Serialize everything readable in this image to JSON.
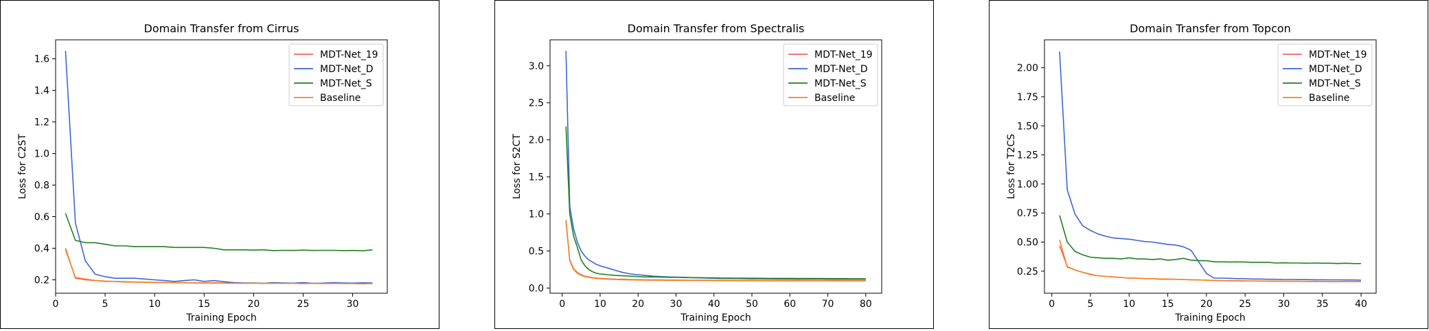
{
  "chart_data": [
    {
      "type": "line",
      "title": "Domain Transfer from Cirrus",
      "xlabel": "Training Epoch",
      "ylabel": "Loss for C2ST",
      "xlim": [
        0,
        33.5
      ],
      "ylim": [
        0.115,
        1.72
      ],
      "xticks": [
        0,
        5,
        10,
        15,
        20,
        25,
        30
      ],
      "yticks": [
        0.2,
        0.4,
        0.6,
        0.8,
        1.0,
        1.2,
        1.4,
        1.6
      ],
      "ytick_labels": [
        "0.2",
        "0.4",
        "0.6",
        "0.8",
        "1.0",
        "1.2",
        "1.4",
        "1.6"
      ],
      "legend": "top-right",
      "x": [
        1,
        2,
        3,
        4,
        5,
        6,
        7,
        8,
        9,
        10,
        11,
        12,
        13,
        14,
        15,
        16,
        17,
        18,
        19,
        20,
        21,
        22,
        23,
        24,
        25,
        26,
        27,
        28,
        29,
        30,
        31,
        32
      ],
      "series": [
        {
          "name": "MDT-Net_19",
          "color": "#f4655e",
          "values": [
            0.4,
            0.21,
            0.2,
            0.195,
            0.19,
            0.19,
            0.188,
            0.186,
            0.185,
            0.184,
            0.183,
            0.182,
            0.182,
            0.181,
            0.18,
            0.181,
            0.18,
            0.179,
            0.179,
            0.18,
            0.178,
            0.179,
            0.178,
            0.178,
            0.177,
            0.178,
            0.177,
            0.178,
            0.177,
            0.177,
            0.176,
            0.177
          ]
        },
        {
          "name": "MDT-Net_D",
          "color": "#3b64d8",
          "values": [
            1.65,
            0.56,
            0.32,
            0.235,
            0.22,
            0.21,
            0.21,
            0.21,
            0.205,
            0.2,
            0.195,
            0.19,
            0.195,
            0.2,
            0.19,
            0.195,
            0.188,
            0.182,
            0.18,
            0.18,
            0.178,
            0.182,
            0.18,
            0.179,
            0.182,
            0.178,
            0.179,
            0.182,
            0.18,
            0.179,
            0.181,
            0.18
          ]
        },
        {
          "name": "MDT-Net_S",
          "color": "#1e7f1e",
          "values": [
            0.62,
            0.45,
            0.435,
            0.435,
            0.425,
            0.415,
            0.415,
            0.41,
            0.41,
            0.41,
            0.41,
            0.405,
            0.405,
            0.405,
            0.405,
            0.4,
            0.39,
            0.39,
            0.39,
            0.388,
            0.39,
            0.385,
            0.387,
            0.386,
            0.388,
            0.386,
            0.387,
            0.387,
            0.385,
            0.386,
            0.384,
            0.39
          ]
        },
        {
          "name": "Baseline",
          "color": "#f5821f",
          "values": [
            0.39,
            0.215,
            0.205,
            0.196,
            0.192,
            0.19,
            0.186,
            0.185,
            0.184,
            0.183,
            0.182,
            0.181,
            0.181,
            0.18,
            0.179,
            0.18,
            0.179,
            0.178,
            0.178,
            0.179,
            0.177,
            0.178,
            0.177,
            0.177,
            0.176,
            0.177,
            0.176,
            0.177,
            0.176,
            0.176,
            0.175,
            0.176
          ]
        }
      ]
    },
    {
      "type": "line",
      "title": "Domain Transfer from Spectralis",
      "xlabel": "Training Epoch",
      "ylabel": "Loss for S2CT",
      "xlim": [
        -3.2,
        84.2
      ],
      "ylim": [
        -0.07,
        3.35
      ],
      "xticks": [
        0,
        10,
        20,
        30,
        40,
        50,
        60,
        70,
        80
      ],
      "yticks": [
        0.0,
        0.5,
        1.0,
        1.5,
        2.0,
        2.5,
        3.0
      ],
      "ytick_labels": [
        "0.0",
        "0.5",
        "1.0",
        "1.5",
        "2.0",
        "2.5",
        "3.0"
      ],
      "legend": "top-right",
      "x": [
        1,
        2,
        3,
        4,
        5,
        6,
        7,
        8,
        9,
        10,
        12,
        14,
        16,
        18,
        20,
        22,
        24,
        26,
        28,
        30,
        32,
        34,
        36,
        38,
        40,
        42,
        44,
        46,
        48,
        50,
        52,
        54,
        56,
        58,
        60,
        62,
        64,
        66,
        68,
        70,
        72,
        74,
        76,
        78,
        80
      ],
      "series": [
        {
          "name": "MDT-Net_19",
          "color": "#f4655e",
          "values": [
            0.92,
            0.38,
            0.26,
            0.21,
            0.18,
            0.16,
            0.15,
            0.14,
            0.135,
            0.13,
            0.125,
            0.12,
            0.118,
            0.115,
            0.113,
            0.112,
            0.11,
            0.11,
            0.108,
            0.108,
            0.107,
            0.106,
            0.106,
            0.105,
            0.105,
            0.104,
            0.104,
            0.103,
            0.103,
            0.103,
            0.102,
            0.102,
            0.102,
            0.101,
            0.101,
            0.101,
            0.1,
            0.1,
            0.1,
            0.1,
            0.1,
            0.099,
            0.099,
            0.099,
            0.099
          ]
        },
        {
          "name": "MDT-Net_D",
          "color": "#3b64d8",
          "values": [
            3.2,
            1.1,
            0.8,
            0.62,
            0.5,
            0.43,
            0.38,
            0.35,
            0.32,
            0.3,
            0.27,
            0.24,
            0.21,
            0.19,
            0.18,
            0.17,
            0.16,
            0.155,
            0.15,
            0.148,
            0.145,
            0.14,
            0.138,
            0.135,
            0.132,
            0.13,
            0.129,
            0.128,
            0.127,
            0.126,
            0.125,
            0.124,
            0.123,
            0.122,
            0.122,
            0.121,
            0.12,
            0.12,
            0.12,
            0.119,
            0.119,
            0.118,
            0.118,
            0.118,
            0.118
          ]
        },
        {
          "name": "MDT-Net_S",
          "color": "#1e7f1e",
          "values": [
            2.18,
            1.0,
            0.7,
            0.55,
            0.38,
            0.3,
            0.25,
            0.22,
            0.2,
            0.19,
            0.18,
            0.17,
            0.165,
            0.16,
            0.155,
            0.15,
            0.15,
            0.148,
            0.145,
            0.145,
            0.142,
            0.14,
            0.14,
            0.138,
            0.138,
            0.135,
            0.135,
            0.133,
            0.133,
            0.132,
            0.132,
            0.13,
            0.13,
            0.13,
            0.13,
            0.128,
            0.128,
            0.128,
            0.128,
            0.127,
            0.127,
            0.127,
            0.126,
            0.126,
            0.126
          ]
        },
        {
          "name": "Baseline",
          "color": "#f5821f",
          "values": [
            0.9,
            0.37,
            0.25,
            0.2,
            0.17,
            0.155,
            0.145,
            0.135,
            0.13,
            0.125,
            0.12,
            0.115,
            0.112,
            0.11,
            0.108,
            0.107,
            0.105,
            0.105,
            0.104,
            0.103,
            0.103,
            0.102,
            0.102,
            0.101,
            0.101,
            0.1,
            0.1,
            0.1,
            0.099,
            0.099,
            0.099,
            0.098,
            0.098,
            0.098,
            0.098,
            0.097,
            0.097,
            0.097,
            0.097,
            0.097,
            0.096,
            0.096,
            0.096,
            0.096,
            0.096
          ]
        }
      ]
    },
    {
      "type": "line",
      "title": "Domain Transfer from Topcon",
      "xlabel": "Training Epoch",
      "ylabel": "Loss for T2CS",
      "xlim": [
        -0.95,
        41.95
      ],
      "ylim": [
        0.06,
        2.24
      ],
      "xticks": [
        0,
        5,
        10,
        15,
        20,
        25,
        30,
        35,
        40
      ],
      "yticks": [
        0.25,
        0.5,
        0.75,
        1.0,
        1.25,
        1.5,
        1.75,
        2.0
      ],
      "ytick_labels": [
        "0.25",
        "0.50",
        "0.75",
        "1.00",
        "1.25",
        "1.50",
        "1.75",
        "2.00"
      ],
      "legend": "top-right",
      "x": [
        1,
        2,
        3,
        4,
        5,
        6,
        7,
        8,
        9,
        10,
        11,
        12,
        13,
        14,
        15,
        16,
        17,
        18,
        19,
        20,
        21,
        22,
        23,
        24,
        25,
        26,
        27,
        28,
        29,
        30,
        31,
        32,
        33,
        34,
        35,
        36,
        37,
        38,
        39,
        40
      ],
      "series": [
        {
          "name": "MDT-Net_19",
          "color": "#f4655e",
          "values": [
            0.47,
            0.29,
            0.26,
            0.24,
            0.22,
            0.21,
            0.205,
            0.2,
            0.195,
            0.19,
            0.19,
            0.185,
            0.185,
            0.18,
            0.18,
            0.18,
            0.178,
            0.176,
            0.175,
            0.172,
            0.17,
            0.168,
            0.168,
            0.167,
            0.166,
            0.165,
            0.165,
            0.164,
            0.164,
            0.163,
            0.163,
            0.162,
            0.162,
            0.162,
            0.161,
            0.161,
            0.16,
            0.16,
            0.16,
            0.16
          ]
        },
        {
          "name": "MDT-Net_D",
          "color": "#3b64d8",
          "values": [
            2.14,
            0.95,
            0.74,
            0.64,
            0.6,
            0.57,
            0.55,
            0.535,
            0.53,
            0.525,
            0.515,
            0.505,
            0.5,
            0.49,
            0.48,
            0.475,
            0.46,
            0.43,
            0.33,
            0.23,
            0.19,
            0.19,
            0.188,
            0.185,
            0.185,
            0.182,
            0.182,
            0.18,
            0.18,
            0.178,
            0.178,
            0.177,
            0.177,
            0.176,
            0.176,
            0.175,
            0.175,
            0.174,
            0.174,
            0.173
          ]
        },
        {
          "name": "MDT-Net_S",
          "color": "#1e7f1e",
          "values": [
            0.73,
            0.5,
            0.42,
            0.39,
            0.37,
            0.365,
            0.36,
            0.36,
            0.355,
            0.365,
            0.355,
            0.355,
            0.35,
            0.355,
            0.345,
            0.35,
            0.36,
            0.345,
            0.34,
            0.34,
            0.33,
            0.33,
            0.328,
            0.33,
            0.328,
            0.325,
            0.325,
            0.325,
            0.32,
            0.322,
            0.32,
            0.32,
            0.318,
            0.32,
            0.318,
            0.318,
            0.316,
            0.318,
            0.316,
            0.315
          ]
        },
        {
          "name": "Baseline",
          "color": "#f5821f",
          "values": [
            0.52,
            0.285,
            0.26,
            0.24,
            0.225,
            0.21,
            0.205,
            0.2,
            0.195,
            0.19,
            0.19,
            0.185,
            0.185,
            0.182,
            0.182,
            0.18,
            0.178,
            0.176,
            0.174,
            0.172,
            0.17,
            0.168,
            0.167,
            0.166,
            0.165,
            0.165,
            0.164,
            0.164,
            0.163,
            0.163,
            0.162,
            0.162,
            0.161,
            0.161,
            0.161,
            0.16,
            0.16,
            0.16,
            0.16,
            0.16
          ]
        }
      ]
    }
  ]
}
